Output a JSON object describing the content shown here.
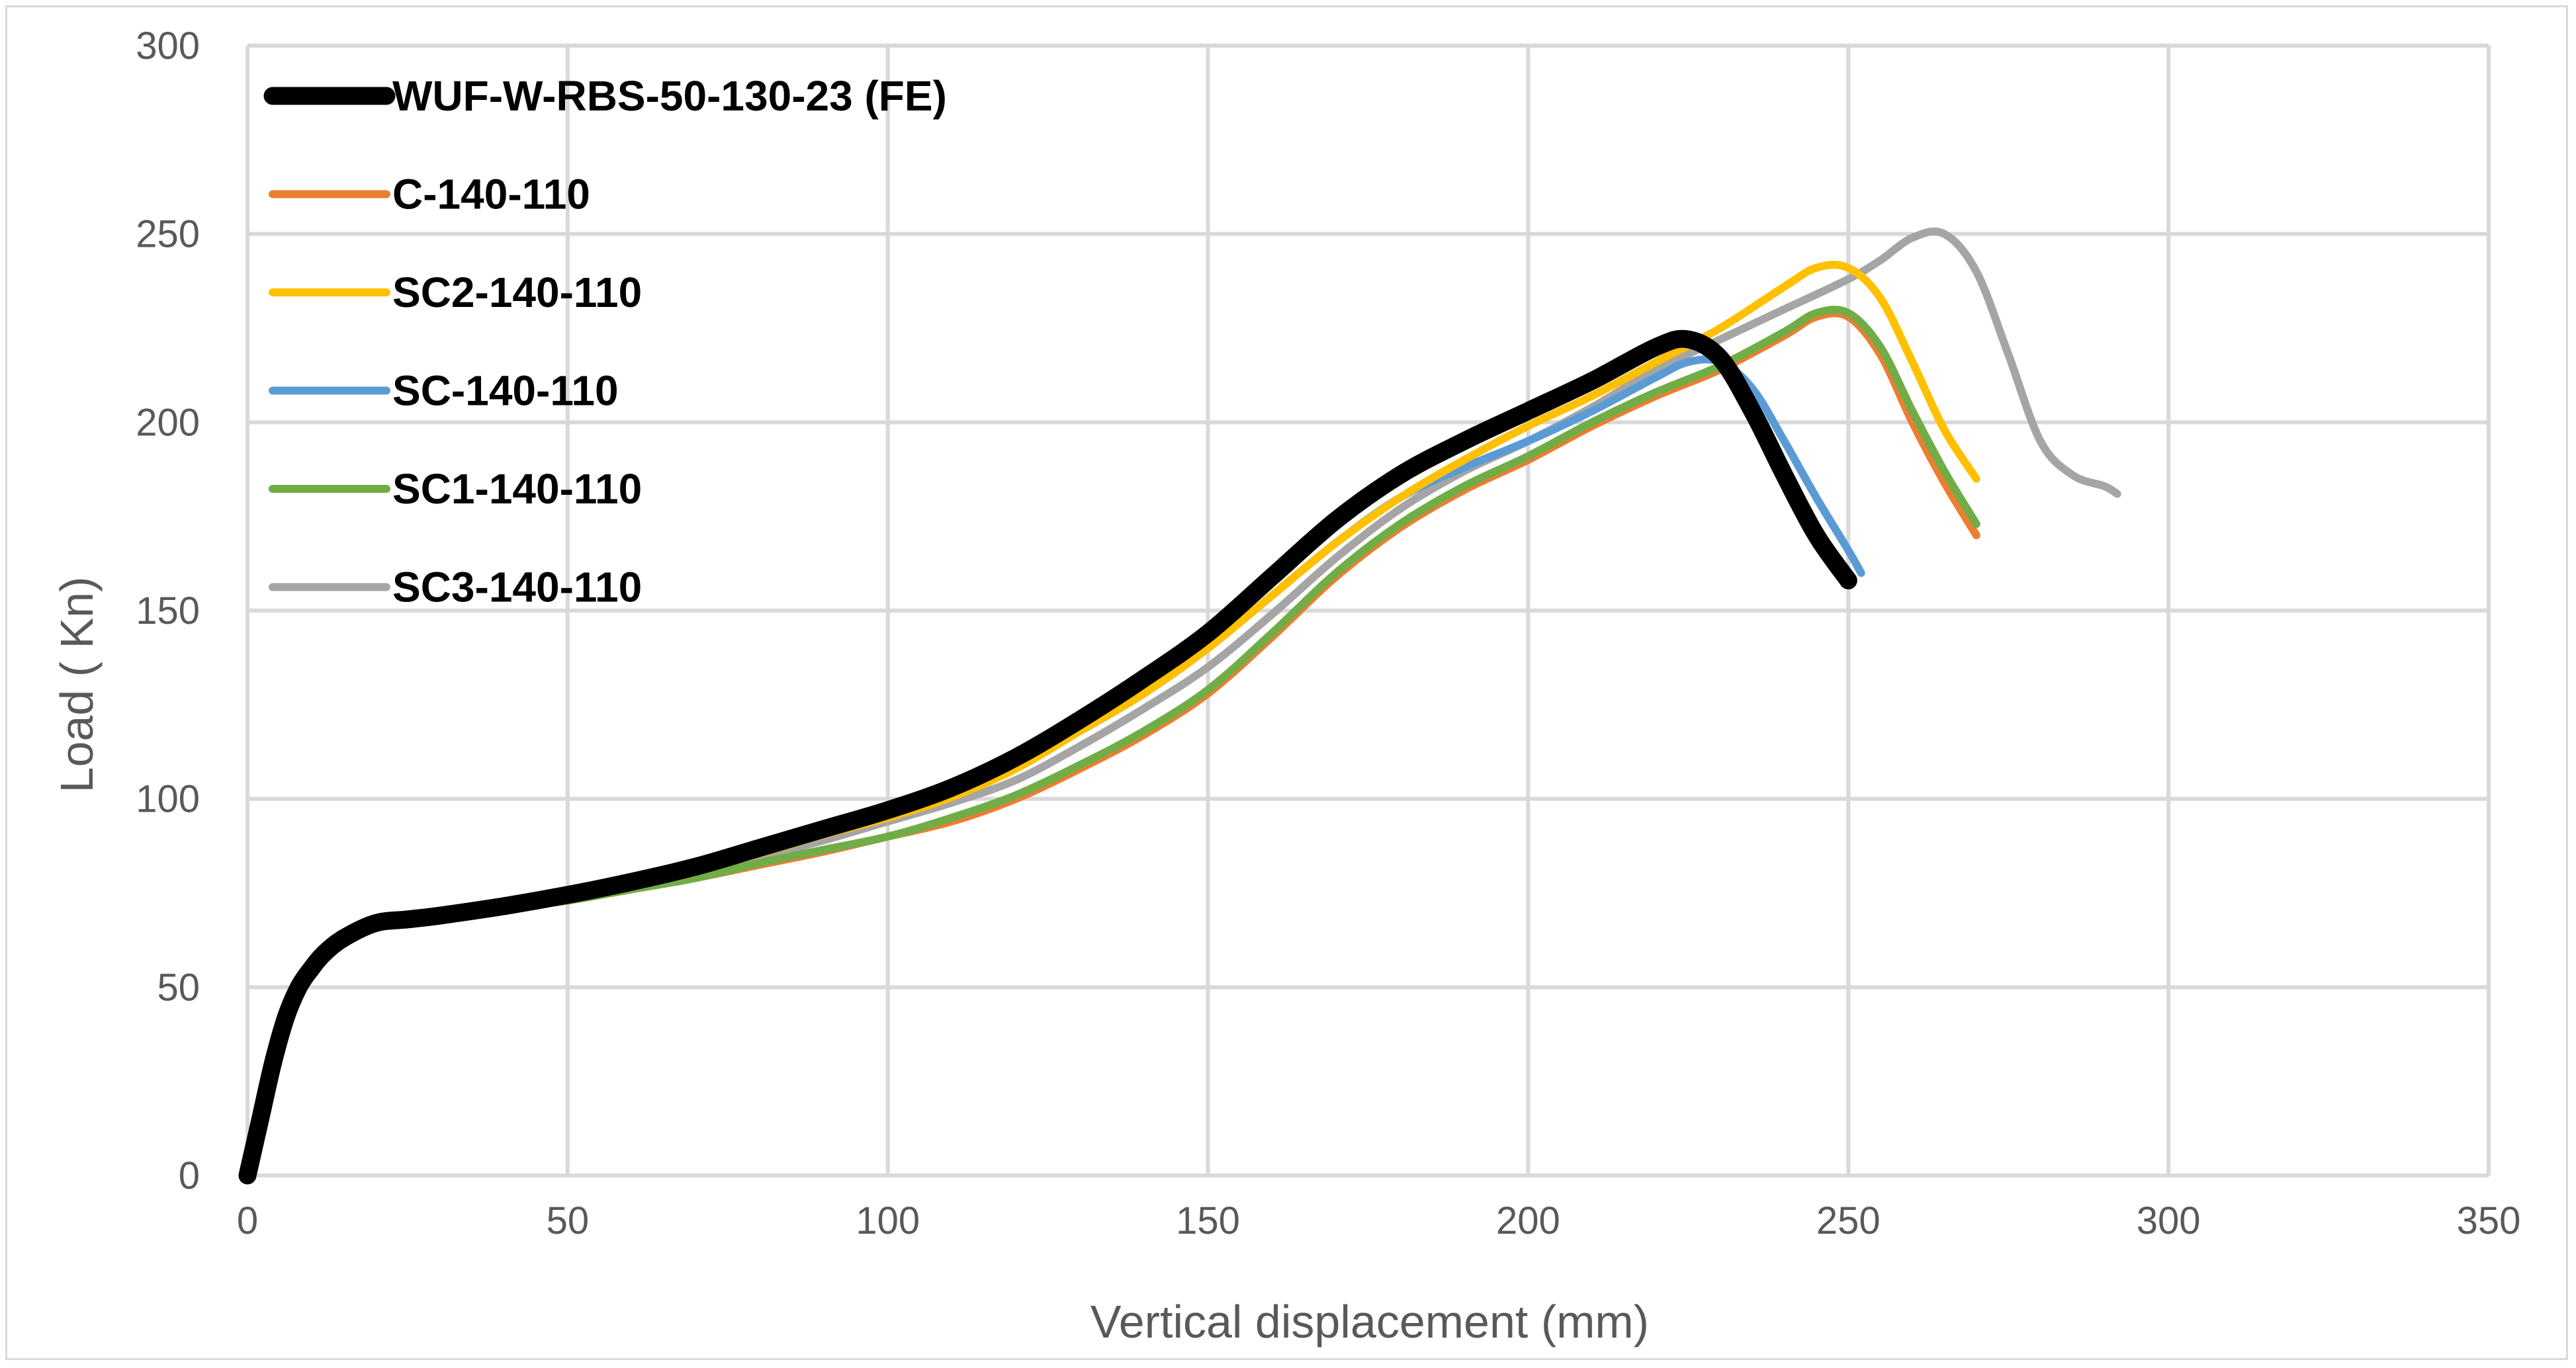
{
  "chart_data": {
    "type": "line",
    "title": "",
    "xlabel": "Vertical displacement (mm)",
    "ylabel": "Load ( Kn)",
    "xlim": [
      0,
      350
    ],
    "ylim": [
      0,
      300
    ],
    "x_ticks": [
      0,
      50,
      100,
      150,
      200,
      250,
      300,
      350
    ],
    "y_ticks": [
      0,
      50,
      100,
      150,
      200,
      250,
      300
    ],
    "grid": true,
    "legend_position": "top-left",
    "series": [
      {
        "name": "WUF-W-RBS-50-130-23 (FE)",
        "color": "#000000",
        "weight": "heavy",
        "x": [
          0,
          2,
          4,
          6,
          8,
          10,
          12,
          15,
          20,
          25,
          30,
          40,
          50,
          60,
          70,
          80,
          90,
          100,
          110,
          120,
          130,
          140,
          150,
          160,
          170,
          180,
          190,
          200,
          210,
          220,
          225,
          230,
          235,
          240,
          245,
          250
        ],
        "y": [
          0,
          15,
          30,
          42,
          50,
          55,
          59,
          63,
          67,
          68,
          69,
          71.5,
          74.5,
          78,
          82,
          87,
          92,
          97,
          103,
          111,
          121,
          132,
          144,
          159,
          174,
          186,
          195,
          203,
          211,
          220,
          222,
          217,
          203,
          186,
          170,
          158
        ]
      },
      {
        "name": "C-140-110",
        "color": "#ed7d31",
        "weight": "normal",
        "x": [
          0,
          2,
          4,
          6,
          8,
          10,
          12,
          15,
          20,
          25,
          30,
          40,
          50,
          60,
          70,
          80,
          90,
          100,
          110,
          120,
          130,
          140,
          150,
          160,
          170,
          180,
          190,
          200,
          210,
          220,
          230,
          240,
          245,
          250,
          255,
          260,
          265,
          270
        ],
        "y": [
          0,
          15,
          30,
          42,
          50,
          55,
          59,
          63,
          67,
          68,
          69,
          71,
          73,
          76,
          79,
          82.5,
          86,
          90,
          94,
          100,
          108,
          117,
          128,
          143,
          159,
          172,
          182,
          190,
          199,
          207,
          214,
          223,
          228,
          228,
          218,
          200,
          184,
          170
        ]
      },
      {
        "name": "SC2-140-110",
        "color": "#ffc000",
        "weight": "normal",
        "x": [
          0,
          2,
          4,
          6,
          8,
          10,
          12,
          15,
          20,
          25,
          30,
          40,
          50,
          60,
          70,
          80,
          90,
          100,
          110,
          120,
          130,
          140,
          150,
          160,
          170,
          180,
          190,
          200,
          210,
          220,
          230,
          240,
          245,
          250,
          255,
          260,
          265,
          270
        ],
        "y": [
          0,
          15,
          30,
          42,
          50,
          55,
          59,
          63,
          67,
          68,
          69,
          71.5,
          74,
          77.5,
          81,
          85.5,
          90.5,
          95,
          100.5,
          108,
          118,
          128,
          140,
          154,
          168,
          180,
          190,
          199,
          207,
          216,
          225,
          236,
          241,
          241,
          233,
          216,
          198,
          185
        ]
      },
      {
        "name": "SC-140-110",
        "color": "#5b9bd5",
        "weight": "normal",
        "x": [
          0,
          2,
          4,
          6,
          8,
          10,
          12,
          15,
          20,
          25,
          30,
          40,
          50,
          60,
          70,
          80,
          90,
          100,
          110,
          120,
          130,
          140,
          150,
          160,
          170,
          180,
          190,
          200,
          210,
          220,
          225,
          230,
          235,
          240,
          245,
          250,
          252
        ],
        "y": [
          0,
          15,
          30,
          42,
          50,
          55,
          59,
          63,
          67,
          68,
          69,
          71.5,
          74,
          77.5,
          81,
          85.5,
          91,
          96,
          102,
          109,
          118,
          128,
          140,
          154,
          168,
          180,
          188,
          195,
          203,
          212,
          216,
          216,
          209,
          195,
          180,
          166,
          160
        ]
      },
      {
        "name": "SC1-140-110",
        "color": "#70ad47",
        "weight": "normal",
        "x": [
          0,
          2,
          4,
          6,
          8,
          10,
          12,
          15,
          20,
          25,
          30,
          40,
          50,
          60,
          70,
          80,
          90,
          100,
          110,
          120,
          130,
          140,
          150,
          160,
          170,
          180,
          190,
          200,
          210,
          220,
          230,
          240,
          245,
          250,
          255,
          260,
          265,
          270
        ],
        "y": [
          0,
          15,
          30,
          42,
          50,
          55,
          59,
          63,
          67,
          68,
          69,
          71,
          73,
          76,
          79,
          83,
          86.5,
          90,
          95,
          101,
          109,
          118,
          129,
          144,
          160,
          173,
          183,
          191,
          200,
          208,
          215,
          224,
          229,
          229,
          220,
          203,
          187,
          173
        ]
      },
      {
        "name": "SC3-140-110",
        "color": "#a5a5a5",
        "weight": "normal",
        "x": [
          0,
          2,
          4,
          6,
          8,
          10,
          12,
          15,
          20,
          25,
          30,
          40,
          50,
          60,
          70,
          80,
          90,
          100,
          110,
          120,
          130,
          140,
          150,
          160,
          170,
          180,
          190,
          200,
          210,
          220,
          230,
          240,
          250,
          255,
          260,
          265,
          270,
          275,
          280,
          285,
          290,
          292
        ],
        "y": [
          0,
          15,
          30,
          42,
          50,
          55,
          59,
          63,
          67,
          68,
          69,
          71.5,
          74,
          77,
          80.5,
          84.5,
          89,
          94,
          99,
          105,
          114,
          124,
          135,
          149,
          164,
          177,
          187,
          195,
          204,
          214,
          222,
          230,
          238,
          243,
          249,
          250,
          240,
          218,
          195,
          186,
          183,
          181
        ]
      }
    ]
  }
}
